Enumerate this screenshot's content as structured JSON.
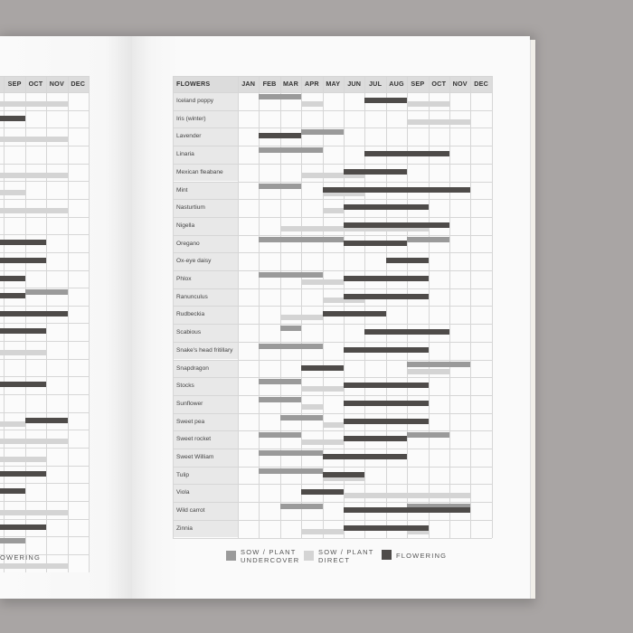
{
  "colors": {
    "undercover": "#9a9a9a",
    "direct": "#d4d4d4",
    "flowering": "#4e4b49"
  },
  "table": {
    "name_header": "FLOWERS",
    "months": [
      "JAN",
      "FEB",
      "MAR",
      "APR",
      "MAY",
      "JUN",
      "JUL",
      "AUG",
      "SEP",
      "OCT",
      "NOV",
      "DEC"
    ],
    "rows": [
      {
        "name": "Iceland poppy",
        "bars": [
          {
            "t": "undercover",
            "s": 1,
            "e": 3
          },
          {
            "t": "direct",
            "s": 3,
            "e": 4
          },
          {
            "t": "flowering",
            "s": 6,
            "e": 8
          },
          {
            "t": "direct",
            "s": 8,
            "e": 10
          }
        ]
      },
      {
        "name": "Iris (winter)",
        "bars": [
          {
            "t": "direct",
            "s": 8,
            "e": 11
          }
        ]
      },
      {
        "name": "Lavender",
        "bars": [
          {
            "t": "flowering",
            "s": 1,
            "e": 3
          },
          {
            "t": "undercover",
            "s": 3,
            "e": 5
          }
        ]
      },
      {
        "name": "Linaria",
        "bars": [
          {
            "t": "undercover",
            "s": 1,
            "e": 4
          },
          {
            "t": "flowering",
            "s": 6,
            "e": 10
          }
        ]
      },
      {
        "name": "Mexican fleabane",
        "bars": [
          {
            "t": "direct",
            "s": 3,
            "e": 6
          },
          {
            "t": "flowering",
            "s": 5,
            "e": 8
          }
        ]
      },
      {
        "name": "Mint",
        "bars": [
          {
            "t": "undercover",
            "s": 1,
            "e": 3
          },
          {
            "t": "direct",
            "s": 4,
            "e": 6
          },
          {
            "t": "flowering",
            "s": 4,
            "e": 11
          }
        ]
      },
      {
        "name": "Nasturtium",
        "bars": [
          {
            "t": "direct",
            "s": 4,
            "e": 5
          },
          {
            "t": "flowering",
            "s": 5,
            "e": 9
          }
        ]
      },
      {
        "name": "Nigella",
        "bars": [
          {
            "t": "direct",
            "s": 2,
            "e": 5
          },
          {
            "t": "direct",
            "s": 5,
            "e": 9
          },
          {
            "t": "flowering",
            "s": 5,
            "e": 10
          }
        ]
      },
      {
        "name": "Oregano",
        "bars": [
          {
            "t": "undercover",
            "s": 1,
            "e": 5
          },
          {
            "t": "flowering",
            "s": 5,
            "e": 8
          },
          {
            "t": "undercover",
            "s": 8,
            "e": 10
          }
        ]
      },
      {
        "name": "Ox-eye daisy",
        "bars": [
          {
            "t": "flowering",
            "s": 7,
            "e": 9
          }
        ]
      },
      {
        "name": "Phlox",
        "bars": [
          {
            "t": "direct",
            "s": 3,
            "e": 5
          },
          {
            "t": "undercover",
            "s": 1,
            "e": 4
          },
          {
            "t": "flowering",
            "s": 5,
            "e": 9
          }
        ]
      },
      {
        "name": "Ranunculus",
        "bars": [
          {
            "t": "direct",
            "s": 4,
            "e": 6
          },
          {
            "t": "flowering",
            "s": 5,
            "e": 9
          }
        ]
      },
      {
        "name": "Rudbeckia",
        "bars": [
          {
            "t": "direct",
            "s": 2,
            "e": 4
          },
          {
            "t": "flowering",
            "s": 4,
            "e": 7
          }
        ]
      },
      {
        "name": "Scabious",
        "bars": [
          {
            "t": "undercover",
            "s": 2,
            "e": 3
          },
          {
            "t": "flowering",
            "s": 6,
            "e": 10
          }
        ]
      },
      {
        "name": "Snake's head fritillary",
        "bars": [
          {
            "t": "undercover",
            "s": 1,
            "e": 4
          },
          {
            "t": "flowering",
            "s": 5,
            "e": 9
          }
        ]
      },
      {
        "name": "Snapdragon",
        "bars": [
          {
            "t": "direct",
            "s": 8,
            "e": 10
          },
          {
            "t": "flowering",
            "s": 3,
            "e": 5
          },
          {
            "t": "undercover",
            "s": 8,
            "e": 11
          }
        ]
      },
      {
        "name": "Stocks",
        "bars": [
          {
            "t": "undercover",
            "s": 1,
            "e": 3
          },
          {
            "t": "direct",
            "s": 3,
            "e": 5
          },
          {
            "t": "flowering",
            "s": 5,
            "e": 9
          }
        ]
      },
      {
        "name": "Sunflower",
        "bars": [
          {
            "t": "undercover",
            "s": 1,
            "e": 3
          },
          {
            "t": "direct",
            "s": 3,
            "e": 4
          },
          {
            "t": "flowering",
            "s": 5,
            "e": 9
          }
        ]
      },
      {
        "name": "Sweet pea",
        "bars": [
          {
            "t": "undercover",
            "s": 2,
            "e": 4
          },
          {
            "t": "direct",
            "s": 4,
            "e": 5
          },
          {
            "t": "flowering",
            "s": 5,
            "e": 9
          }
        ]
      },
      {
        "name": "Sweet rocket",
        "bars": [
          {
            "t": "undercover",
            "s": 1,
            "e": 3
          },
          {
            "t": "direct",
            "s": 3,
            "e": 5
          },
          {
            "t": "flowering",
            "s": 5,
            "e": 8
          },
          {
            "t": "undercover",
            "s": 8,
            "e": 10
          }
        ]
      },
      {
        "name": "Sweet William",
        "bars": [
          {
            "t": "undercover",
            "s": 1,
            "e": 4
          },
          {
            "t": "flowering",
            "s": 4,
            "e": 8
          }
        ]
      },
      {
        "name": "Tulip",
        "bars": [
          {
            "t": "undercover",
            "s": 1,
            "e": 4
          },
          {
            "t": "direct",
            "s": 4,
            "e": 6
          },
          {
            "t": "flowering",
            "s": 4,
            "e": 6
          }
        ]
      },
      {
        "name": "Viola",
        "bars": [
          {
            "t": "flowering",
            "s": 3,
            "e": 5
          },
          {
            "t": "direct",
            "s": 5,
            "e": 8
          },
          {
            "t": "direct",
            "s": 8,
            "e": 11
          }
        ]
      },
      {
        "name": "Wild carrot",
        "bars": [
          {
            "t": "undercover",
            "s": 2,
            "e": 4
          },
          {
            "t": "flowering",
            "s": 5,
            "e": 11
          },
          {
            "t": "undercover",
            "s": 8,
            "e": 11
          }
        ]
      },
      {
        "name": "Zinnia",
        "bars": [
          {
            "t": "direct",
            "s": 3,
            "e": 5
          },
          {
            "t": "flowering",
            "s": 5,
            "e": 9
          },
          {
            "t": "direct",
            "s": 8,
            "e": 9
          }
        ]
      }
    ]
  },
  "left_table": {
    "months": [
      "SEP",
      "OCT",
      "NOV",
      "DEC"
    ],
    "rows": [
      {
        "bars": [
          {
            "t": "direct",
            "s": 0,
            "e": 3
          }
        ]
      },
      {
        "bars": [
          {
            "t": "flowering",
            "s": 0,
            "e": 1
          }
        ]
      },
      {
        "bars": [
          {
            "t": "direct",
            "s": 0,
            "e": 3
          }
        ]
      },
      {
        "bars": []
      },
      {
        "bars": [
          {
            "t": "direct",
            "s": 0,
            "e": 3
          }
        ]
      },
      {
        "bars": [
          {
            "t": "direct",
            "s": 0,
            "e": 1
          }
        ]
      },
      {
        "bars": [
          {
            "t": "direct",
            "s": 0,
            "e": 3
          }
        ]
      },
      {
        "bars": []
      },
      {
        "bars": [
          {
            "t": "flowering",
            "s": 0,
            "e": 2
          }
        ]
      },
      {
        "bars": [
          {
            "t": "flowering",
            "s": 0,
            "e": 2
          }
        ]
      },
      {
        "bars": [
          {
            "t": "flowering",
            "s": 0,
            "e": 1
          }
        ]
      },
      {
        "bars": [
          {
            "t": "flowering",
            "s": 0,
            "e": 1
          },
          {
            "t": "undercover",
            "s": 1,
            "e": 3
          }
        ]
      },
      {
        "bars": [
          {
            "t": "flowering",
            "s": 0,
            "e": 3
          }
        ]
      },
      {
        "bars": [
          {
            "t": "flowering",
            "s": 0,
            "e": 2
          }
        ]
      },
      {
        "bars": [
          {
            "t": "direct",
            "s": 0,
            "e": 2
          }
        ]
      },
      {
        "bars": []
      },
      {
        "bars": [
          {
            "t": "flowering",
            "s": 0,
            "e": 2
          }
        ]
      },
      {
        "bars": []
      },
      {
        "bars": [
          {
            "t": "direct",
            "s": 0,
            "e": 1
          },
          {
            "t": "flowering",
            "s": 1,
            "e": 3
          }
        ]
      },
      {
        "bars": [
          {
            "t": "direct",
            "s": 0,
            "e": 3
          }
        ]
      },
      {
        "bars": [
          {
            "t": "direct",
            "s": 0,
            "e": 2
          }
        ]
      },
      {
        "bars": [
          {
            "t": "flowering",
            "s": 0,
            "e": 2
          }
        ]
      },
      {
        "bars": [
          {
            "t": "flowering",
            "s": 0,
            "e": 1
          }
        ]
      },
      {
        "bars": [
          {
            "t": "direct",
            "s": 0,
            "e": 3
          }
        ]
      },
      {
        "bars": [
          {
            "t": "flowering",
            "s": 0,
            "e": 2
          }
        ]
      },
      {
        "bars": [
          {
            "t": "undercover",
            "s": 0,
            "e": 1
          }
        ]
      },
      {
        "bars": [
          {
            "t": "direct",
            "s": 0,
            "e": 3
          }
        ]
      }
    ]
  },
  "left_legend": {
    "flowering_label": "OWERING"
  },
  "legend": {
    "undercover_line1": "SOW / PLANT",
    "undercover_line2": "UNDERCOVER",
    "direct_line1": "SOW / PLANT",
    "direct_line2": "DIRECT",
    "flowering_label": "FLOWERING"
  }
}
